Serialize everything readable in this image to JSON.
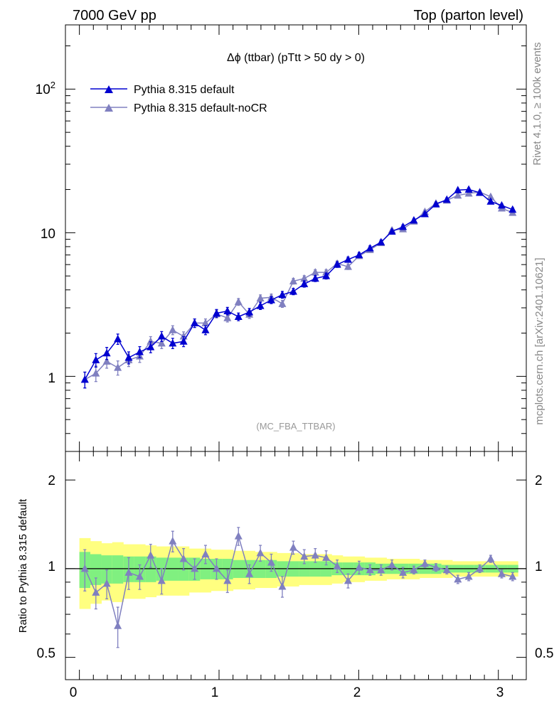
{
  "header": {
    "left": "7000 GeV pp",
    "right": "Top (parton level)"
  },
  "side": {
    "rivet": "Rivet 4.1.0, ≥ 100k events",
    "mcplots": "mcplots.cern.ch [arXiv:2401.10621]"
  },
  "colors": {
    "default": "#0000d0",
    "nocr": "#8080c0",
    "band_outer": "#ffff80",
    "band_inner": "#80f080"
  },
  "chart_data": [
    {
      "type": "line",
      "title": "Δϕ (ttbar) (pTtt > 50 dy > 0)",
      "watermark": "(MC_FBA_TTBAR)",
      "xlabel": "",
      "ylabel": "",
      "yscale": "log",
      "xlim": [
        -0.1,
        3.2
      ],
      "ylim": [
        0.3,
        280
      ],
      "y_ticks": [
        "1",
        "10",
        "10^2"
      ],
      "x": [
        0.039,
        0.118,
        0.196,
        0.275,
        0.353,
        0.432,
        0.51,
        0.589,
        0.668,
        0.746,
        0.825,
        0.903,
        0.982,
        1.06,
        1.139,
        1.217,
        1.296,
        1.374,
        1.453,
        1.532,
        1.61,
        1.689,
        1.767,
        1.846,
        1.924,
        2.003,
        2.081,
        2.16,
        2.238,
        2.317,
        2.395,
        2.474,
        2.553,
        2.631,
        2.71,
        2.788,
        2.867,
        2.945,
        3.024,
        3.102
      ],
      "series": [
        {
          "name": "Pythia 8.315 default",
          "values": [
            0.95,
            1.3,
            1.45,
            1.82,
            1.35,
            1.48,
            1.6,
            1.9,
            1.7,
            1.75,
            2.35,
            2.1,
            2.75,
            2.85,
            2.6,
            2.8,
            3.1,
            3.4,
            3.7,
            3.9,
            4.4,
            4.8,
            5.0,
            6.0,
            6.5,
            7.0,
            7.8,
            8.6,
            10.2,
            11.0,
            12.2,
            13.5,
            15.8,
            17.0,
            19.8,
            20.0,
            19.0,
            16.5,
            15.5,
            14.5
          ],
          "errors": [
            0.12,
            0.14,
            0.14,
            0.15,
            0.13,
            0.13,
            0.14,
            0.15,
            0.14,
            0.14,
            0.16,
            0.15,
            0.17,
            0.17,
            0.16,
            0.17,
            0.18,
            0.19,
            0.2,
            0.2,
            0.22,
            0.23,
            0.24,
            0.26,
            0.27,
            0.28,
            0.3,
            0.31,
            0.35,
            0.36,
            0.38,
            0.41,
            0.45,
            0.47,
            0.5,
            0.5,
            0.49,
            0.46,
            0.44,
            0.43
          ]
        },
        {
          "name": "Pythia 8.315 default-noCR",
          "values": [
            0.95,
            1.05,
            1.27,
            1.15,
            1.3,
            1.38,
            1.75,
            1.7,
            2.1,
            1.9,
            2.35,
            2.35,
            2.72,
            2.55,
            3.3,
            2.7,
            3.5,
            3.55,
            3.2,
            4.6,
            4.8,
            5.3,
            5.3,
            6.1,
            5.8,
            6.9,
            7.6,
            8.5,
            10.4,
            10.6,
            12.0,
            14.0,
            16.0,
            16.8,
            18.2,
            18.8,
            19.2,
            17.8,
            14.8,
            13.8
          ],
          "errors": [
            0.12,
            0.13,
            0.13,
            0.13,
            0.13,
            0.13,
            0.14,
            0.14,
            0.15,
            0.14,
            0.16,
            0.16,
            0.17,
            0.16,
            0.18,
            0.17,
            0.19,
            0.19,
            0.18,
            0.21,
            0.22,
            0.23,
            0.23,
            0.26,
            0.25,
            0.28,
            0.29,
            0.31,
            0.35,
            0.35,
            0.38,
            0.41,
            0.45,
            0.46,
            0.48,
            0.49,
            0.49,
            0.47,
            0.43,
            0.42
          ]
        }
      ]
    },
    {
      "type": "line",
      "title": "",
      "xlabel": "",
      "ylabel": "Ratio to Pythia 8.315 default",
      "yscale": "log",
      "xlim": [
        -0.1,
        3.2
      ],
      "ylim": [
        0.42,
        2.5
      ],
      "y_ticks": [
        "0.5",
        "1",
        "2"
      ],
      "x_ticks": [
        "0",
        "1",
        "2",
        "3"
      ],
      "reference": 1,
      "band_x": [
        0.0,
        0.078,
        0.157,
        0.235,
        0.314,
        0.392,
        0.471,
        0.55,
        0.628,
        0.707,
        0.785,
        0.864,
        0.942,
        1.021,
        1.1,
        1.178,
        1.257,
        1.335,
        1.414,
        1.492,
        1.571,
        1.649,
        1.728,
        1.806,
        1.885,
        1.963,
        2.042,
        2.12,
        2.199,
        2.278,
        2.356,
        2.435,
        2.513,
        2.592,
        2.67,
        2.749,
        2.827,
        2.906,
        2.984,
        3.063,
        3.14
      ],
      "band_outer": [
        0.27,
        0.24,
        0.22,
        0.23,
        0.21,
        0.21,
        0.2,
        0.19,
        0.19,
        0.19,
        0.17,
        0.17,
        0.16,
        0.16,
        0.15,
        0.15,
        0.14,
        0.14,
        0.13,
        0.13,
        0.12,
        0.12,
        0.12,
        0.11,
        0.1,
        0.1,
        0.09,
        0.09,
        0.08,
        0.08,
        0.08,
        0.07,
        0.07,
        0.07,
        0.06,
        0.06,
        0.06,
        0.06,
        0.06,
        0.06
      ],
      "band_inner": [
        0.14,
        0.12,
        0.11,
        0.11,
        0.1,
        0.1,
        0.1,
        0.09,
        0.09,
        0.09,
        0.09,
        0.08,
        0.08,
        0.08,
        0.07,
        0.07,
        0.07,
        0.07,
        0.06,
        0.06,
        0.06,
        0.06,
        0.06,
        0.05,
        0.05,
        0.05,
        0.05,
        0.04,
        0.04,
        0.04,
        0.04,
        0.04,
        0.04,
        0.03,
        0.03,
        0.03,
        0.03,
        0.03,
        0.03,
        0.03
      ],
      "series": [
        {
          "name": "Pythia 8.315 default-noCR",
          "values": [
            1.0,
            0.83,
            0.89,
            0.64,
            0.97,
            0.94,
            1.11,
            0.91,
            1.24,
            1.08,
            1.0,
            1.12,
            1.0,
            0.91,
            1.29,
            0.96,
            1.13,
            1.05,
            0.87,
            1.18,
            1.1,
            1.11,
            1.09,
            1.02,
            0.91,
            1.01,
            0.99,
            0.99,
            1.03,
            0.97,
            0.99,
            1.04,
            1.01,
            0.99,
            0.92,
            0.94,
            1.0,
            1.08,
            0.96,
            0.94
          ],
          "errors": [
            0.16,
            0.1,
            0.1,
            0.1,
            0.12,
            0.09,
            0.1,
            0.09,
            0.1,
            0.09,
            0.08,
            0.08,
            0.08,
            0.08,
            0.09,
            0.07,
            0.07,
            0.07,
            0.07,
            0.06,
            0.06,
            0.06,
            0.06,
            0.05,
            0.05,
            0.05,
            0.04,
            0.04,
            0.04,
            0.04,
            0.03,
            0.03,
            0.03,
            0.03,
            0.03,
            0.03,
            0.03,
            0.03,
            0.03,
            0.03
          ]
        }
      ]
    }
  ]
}
